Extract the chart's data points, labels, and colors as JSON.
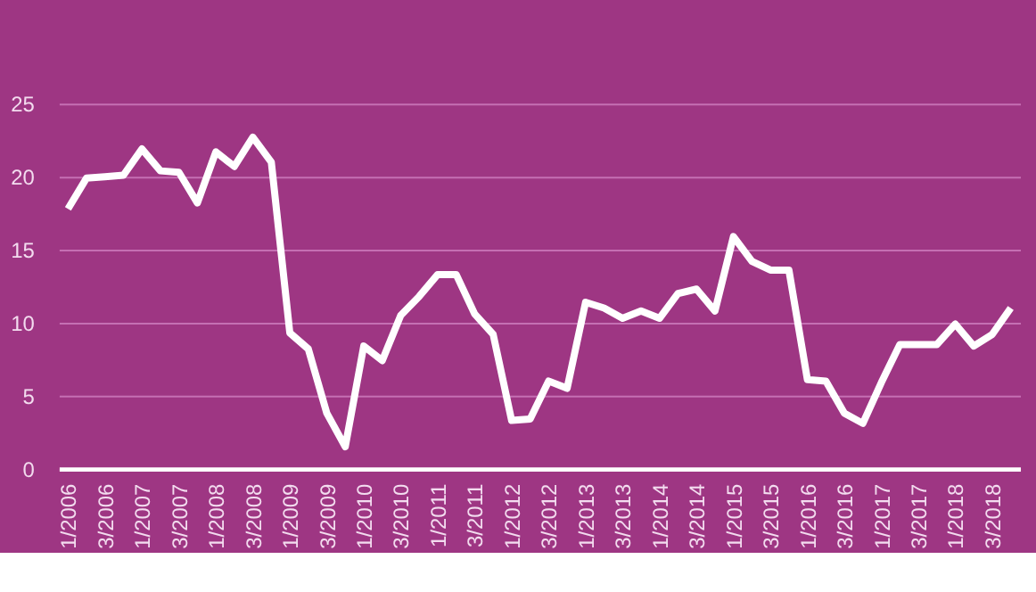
{
  "chart_data": {
    "type": "line",
    "categories": [
      "1/2006",
      null,
      "3/2006",
      null,
      "1/2007",
      null,
      "3/2007",
      null,
      "1/2008",
      null,
      "3/2008",
      null,
      "1/2009",
      null,
      "3/2009",
      null,
      "1/2010",
      null,
      "3/2010",
      null,
      "1/2011",
      null,
      "3/2011",
      null,
      "1/2012",
      null,
      "3/2012",
      null,
      "1/2013",
      null,
      "3/2013",
      null,
      "1/2014",
      null,
      "3/2014",
      null,
      "1/2015",
      null,
      "3/2015",
      null,
      "1/2016",
      null,
      "3/2016",
      null,
      "1/2017",
      null,
      "3/2017",
      null,
      "1/2018",
      null,
      "3/2018",
      null
    ],
    "series": [
      {
        "color": "#ffffff",
        "values": [
          17.8,
          19.9,
          20.0,
          20.1,
          21.9,
          20.4,
          20.3,
          18.2,
          21.7,
          20.7,
          22.7,
          21.0,
          9.3,
          8.2,
          3.8,
          1.5,
          8.4,
          7.4,
          10.5,
          11.8,
          13.3,
          13.3,
          10.6,
          9.2,
          3.3,
          3.4,
          6.0,
          5.5,
          11.4,
          11.0,
          10.3,
          10.8,
          10.3,
          12.0,
          12.3,
          10.8,
          15.9,
          14.2,
          13.6,
          13.6,
          6.1,
          6.0,
          3.8,
          3.1,
          5.9,
          8.5,
          8.5,
          8.5,
          9.9,
          8.4,
          9.2,
          11.0
        ]
      }
    ],
    "ylim": [
      0,
      25
    ],
    "yticks": [
      0,
      5,
      10,
      15,
      20,
      25
    ],
    "grid": "y",
    "marker": "none",
    "line_style": "solid"
  }
}
